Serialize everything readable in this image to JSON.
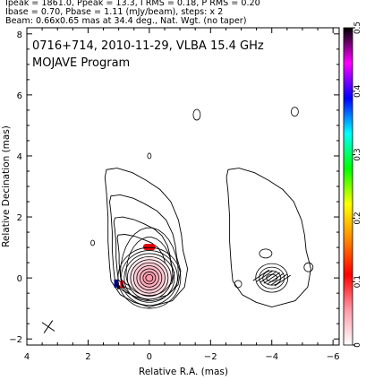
{
  "header_lines": [
    "Ipeak = 1861.0, Ppeak = 13.3, I RMS = 0.18, P RMS = 0.20",
    "Ibase = 0.70, Pbase = 1.11 (mJy/beam), steps: x 2",
    "Beam: 0.66x0.65 mas at 34.4 deg., Nat. Wgt. (no taper)"
  ],
  "chart_data": {
    "type": "contour",
    "title": "0716+714, 2010-11-29, VLBA 15.4 GHz",
    "subtitle": "MOJAVE Program",
    "xlabel": "Relative R.A. (mas)",
    "ylabel": "Relative Decination (mas)",
    "xlim": [
      4,
      -6.2
    ],
    "ylim": [
      -2.2,
      8.2
    ],
    "x_ticks": [
      4,
      2,
      0,
      -2,
      -4,
      -6
    ],
    "y_ticks": [
      -2,
      0,
      2,
      4,
      6,
      8
    ],
    "x_tick_labels": [
      "4",
      "2",
      "0",
      "−2",
      "−4",
      "−6"
    ],
    "y_tick_labels": [
      "−2",
      "0",
      "2",
      "4",
      "6",
      "8"
    ],
    "beam": {
      "major_mas": 0.66,
      "minor_mas": 0.65,
      "pa_deg": 34.4
    },
    "total_intensity": {
      "center": [
        0.0,
        0.0
      ],
      "contour_levels_mJy": [
        0.7,
        1.4,
        2.8,
        5.6,
        11.2,
        22.4,
        44.8,
        89.6,
        179.2,
        358.4,
        716.8,
        1433.6
      ],
      "peak_mJy": 1861.0
    },
    "polarized_intensity": {
      "center": [
        -4.0,
        0.0
      ],
      "peak_mJy": 13.3,
      "base_mJy": 1.11
    },
    "colorbar": {
      "label_values": [
        0,
        0.1,
        0.2,
        0.3,
        0.4,
        0.5
      ],
      "colors_bottom_to_top": [
        "#ffffff",
        "#ff9aa8",
        "#ff0000",
        "#ff8800",
        "#ffff00",
        "#00ff00",
        "#00ffff",
        "#0000ff",
        "#ff00ff",
        "#000000"
      ]
    }
  }
}
